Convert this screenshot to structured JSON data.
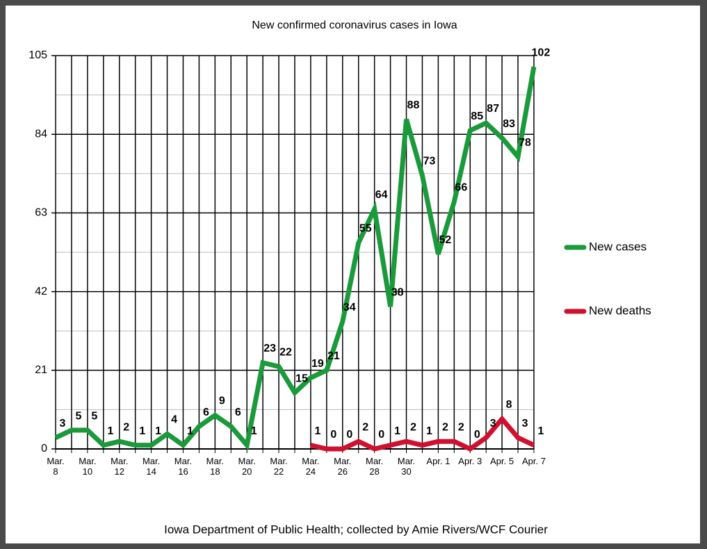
{
  "chart_data": {
    "type": "line",
    "title": "New confirmed coronavirus cases in Iowa",
    "source": "Iowa Department of Public Health; collected by Amie Rivers/WCF Courier",
    "categories": [
      "Mar. 8",
      null,
      "Mar. 10",
      null,
      "Mar. 12",
      null,
      "Mar. 14",
      null,
      "Mar. 16",
      null,
      "Mar. 18",
      null,
      "Mar. 20",
      null,
      "Mar. 22",
      null,
      "Mar. 24",
      null,
      "Mar. 26",
      null,
      "Mar. 28",
      null,
      "Mar. 30",
      null,
      "Apr. 1",
      null,
      "Apr. 3",
      null,
      "Apr. 5",
      null,
      "Apr. 7"
    ],
    "series": [
      {
        "name": "New cases",
        "color": "#1a9a3a",
        "values": [
          3,
          5,
          5,
          1,
          2,
          1,
          1,
          4,
          1,
          6,
          9,
          6,
          1,
          23,
          22,
          15,
          19,
          21,
          34,
          55,
          64,
          38,
          88,
          73,
          52,
          66,
          85,
          87,
          83,
          78,
          102
        ]
      },
      {
        "name": "New deaths",
        "color": "#d0102e",
        "values": [
          null,
          null,
          null,
          null,
          null,
          null,
          null,
          null,
          null,
          null,
          null,
          null,
          null,
          null,
          null,
          null,
          1,
          0,
          0,
          2,
          0,
          1,
          2,
          1,
          2,
          2,
          0,
          3,
          8,
          3,
          1
        ]
      }
    ],
    "ylim": [
      0,
      105
    ],
    "yticks": [
      0,
      21,
      42,
      63,
      84,
      105
    ],
    "minor_yticks": [
      10.5,
      31.5,
      52.5,
      73.5,
      94.5
    ],
    "grid": true,
    "legend": "right"
  }
}
